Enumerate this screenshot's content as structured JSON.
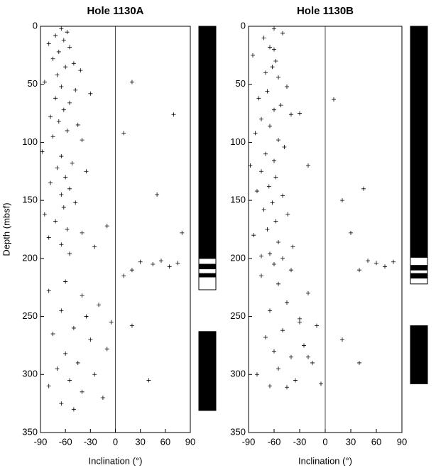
{
  "chart_data": [
    {
      "type": "scatter",
      "title": "Hole 1130A",
      "xlabel": "Inclination (°)",
      "ylabel": "Depth (mbsf)",
      "xlim": [
        -90,
        90
      ],
      "ylim": [
        0,
        350
      ],
      "y_inverted": true,
      "xticks": [
        -90,
        -60,
        -30,
        0,
        30,
        60,
        90
      ],
      "yticks": [
        0,
        50,
        100,
        150,
        200,
        250,
        300,
        350
      ],
      "color": "#000000",
      "x": [
        -65,
        -58,
        -72,
        -62,
        -80,
        -55,
        -68,
        -75,
        -50,
        -60,
        -42,
        -70,
        -85,
        -65,
        -48,
        -30,
        -72,
        -55,
        -62,
        -78,
        -68,
        -45,
        -58,
        -75,
        -40,
        -88,
        -65,
        -52,
        -70,
        -35,
        -60,
        -78,
        -55,
        -65,
        -48,
        -62,
        -85,
        -72,
        -58,
        -40,
        -80,
        -65,
        -25,
        -55,
        20,
        10,
        70,
        50,
        80,
        -10,
        30,
        45,
        55,
        65,
        20,
        75,
        10,
        -60,
        -80,
        -40,
        -20,
        -65,
        -35,
        -5,
        -50,
        -75,
        -30,
        -10,
        -60,
        -45,
        -70,
        -25,
        -55,
        -80,
        -40,
        -15,
        -65,
        20,
        40,
        -50
      ],
      "y": [
        2,
        5,
        8,
        12,
        15,
        18,
        22,
        28,
        32,
        35,
        38,
        42,
        48,
        52,
        55,
        58,
        62,
        66,
        72,
        78,
        82,
        85,
        90,
        95,
        98,
        108,
        112,
        118,
        122,
        125,
        130,
        135,
        140,
        145,
        152,
        156,
        162,
        168,
        175,
        178,
        182,
        188,
        190,
        196,
        48,
        92,
        76,
        145,
        178,
        172,
        203,
        205,
        202,
        207,
        210,
        204,
        215,
        220,
        228,
        232,
        240,
        245,
        250,
        255,
        260,
        265,
        270,
        278,
        282,
        290,
        295,
        300,
        305,
        310,
        315,
        320,
        325,
        258,
        305,
        330
      ],
      "polarity_black": [
        [
          0,
          200
        ],
        [
          205,
          209
        ],
        [
          213,
          216
        ],
        [
          263,
          331
        ]
      ],
      "polarity_white": [
        [
          200,
          227
        ]
      ]
    },
    {
      "type": "scatter",
      "title": "Hole 1130B",
      "xlabel": "Inclination (°)",
      "xlim": [
        -90,
        90
      ],
      "ylim": [
        0,
        350
      ],
      "y_inverted": true,
      "xticks": [
        -90,
        -60,
        -30,
        0,
        30,
        60,
        90
      ],
      "yticks": [
        0,
        50,
        100,
        150,
        200,
        250,
        300,
        350
      ],
      "color": "#000000",
      "x": [
        -60,
        -50,
        -72,
        -65,
        -85,
        -58,
        -62,
        -70,
        -55,
        -45,
        -68,
        -78,
        -52,
        -60,
        -40,
        -75,
        -65,
        -82,
        -55,
        -48,
        -70,
        -60,
        -88,
        -75,
        -58,
        -66,
        -80,
        -50,
        -62,
        -72,
        -44,
        -58,
        -68,
        -84,
        -55,
        -38,
        -65,
        -75,
        -50,
        -60,
        -30,
        -20,
        10,
        20,
        30,
        45,
        -60,
        -40,
        50,
        60,
        70,
        80,
        40,
        -75,
        -55,
        -20,
        -45,
        -65,
        -30,
        -10,
        -50,
        -70,
        -25,
        -60,
        -40,
        -15,
        -55,
        -80,
        -35,
        -5,
        -45,
        -65,
        -30,
        -20,
        20,
        40
      ],
      "y": [
        2,
        6,
        10,
        18,
        25,
        30,
        35,
        40,
        44,
        52,
        56,
        62,
        68,
        72,
        76,
        80,
        86,
        92,
        98,
        104,
        110,
        116,
        120,
        125,
        130,
        138,
        142,
        146,
        152,
        158,
        162,
        168,
        175,
        180,
        186,
        190,
        196,
        198,
        200,
        20,
        75,
        120,
        63,
        150,
        178,
        140,
        205,
        210,
        202,
        204,
        207,
        203,
        210,
        215,
        222,
        230,
        238,
        245,
        252,
        258,
        262,
        268,
        275,
        280,
        285,
        290,
        295,
        300,
        305,
        308,
        311,
        310,
        255,
        285,
        270,
        290
      ],
      "polarity_black": [
        [
          0,
          199
        ],
        [
          206,
          210
        ],
        [
          213,
          217
        ],
        [
          258,
          308
        ]
      ],
      "polarity_white": [
        [
          199,
          222
        ]
      ]
    }
  ]
}
